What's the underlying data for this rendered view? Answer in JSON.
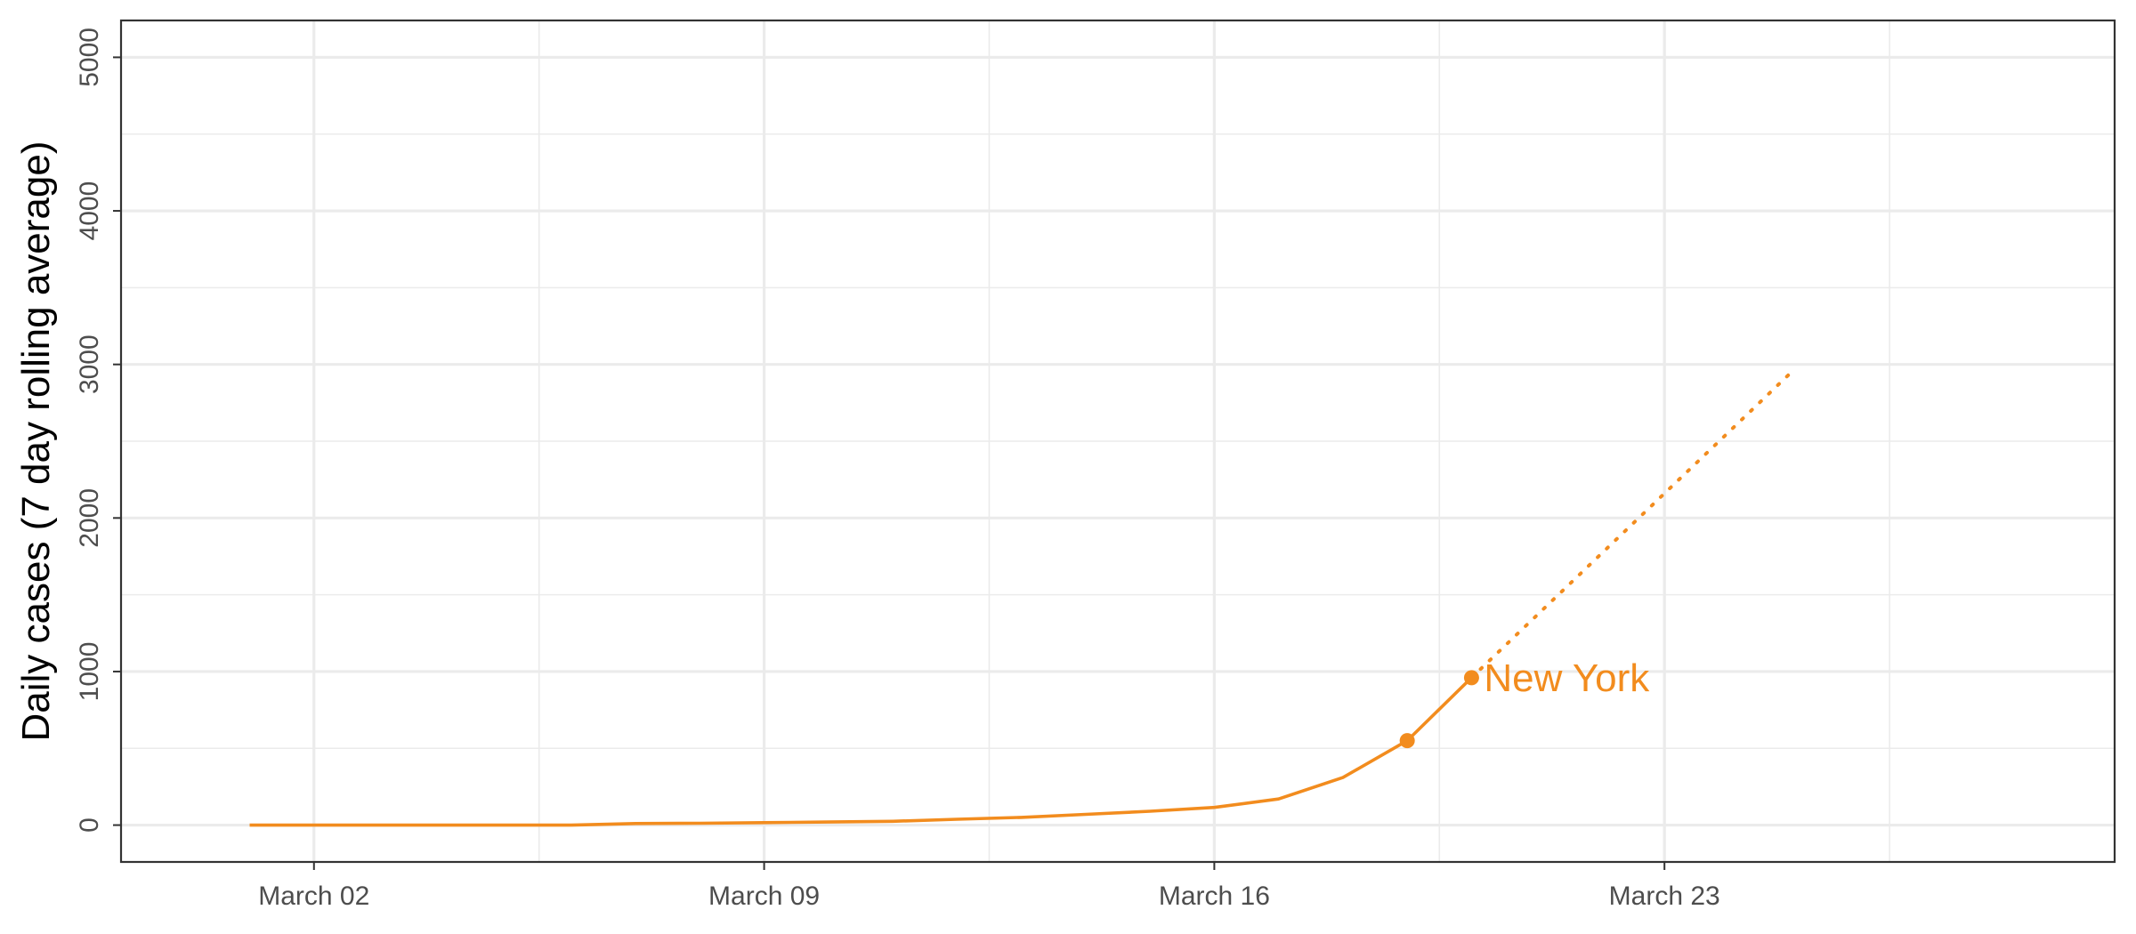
{
  "chart_data": {
    "type": "line",
    "title": "",
    "xlabel": "",
    "ylabel": "Daily cases (7 day rolling average)",
    "x_ticks": [
      "March 02",
      "March 09",
      "March 16",
      "March 23"
    ],
    "y_ticks": [
      0,
      1000,
      2000,
      3000,
      4000,
      5000
    ],
    "xlim": [
      "2020-02-28",
      "2020-03-30"
    ],
    "ylim": [
      -240,
      5240
    ],
    "grid": true,
    "legend": "none",
    "series": [
      {
        "name": "New York",
        "color": "#F28C1E",
        "x": [
          "2020-03-01",
          "2020-03-02",
          "2020-03-03",
          "2020-03-04",
          "2020-03-05",
          "2020-03-06",
          "2020-03-07",
          "2020-03-08",
          "2020-03-09",
          "2020-03-10",
          "2020-03-11",
          "2020-03-12",
          "2020-03-13",
          "2020-03-14",
          "2020-03-15",
          "2020-03-16",
          "2020-03-17",
          "2020-03-18",
          "2020-03-19",
          "2020-03-20"
        ],
        "values": [
          0,
          0,
          0,
          0,
          0,
          0,
          10,
          12,
          16,
          20,
          25,
          38,
          50,
          70,
          90,
          115,
          170,
          310,
          550,
          960
        ],
        "highlight_points": [
          {
            "x": "2020-03-19",
            "y": 550
          },
          {
            "x": "2020-03-20",
            "y": 960
          }
        ],
        "projection": {
          "style": "dotted",
          "x": [
            "2020-03-20",
            "2020-03-25"
          ],
          "values": [
            960,
            2960
          ]
        }
      }
    ]
  }
}
